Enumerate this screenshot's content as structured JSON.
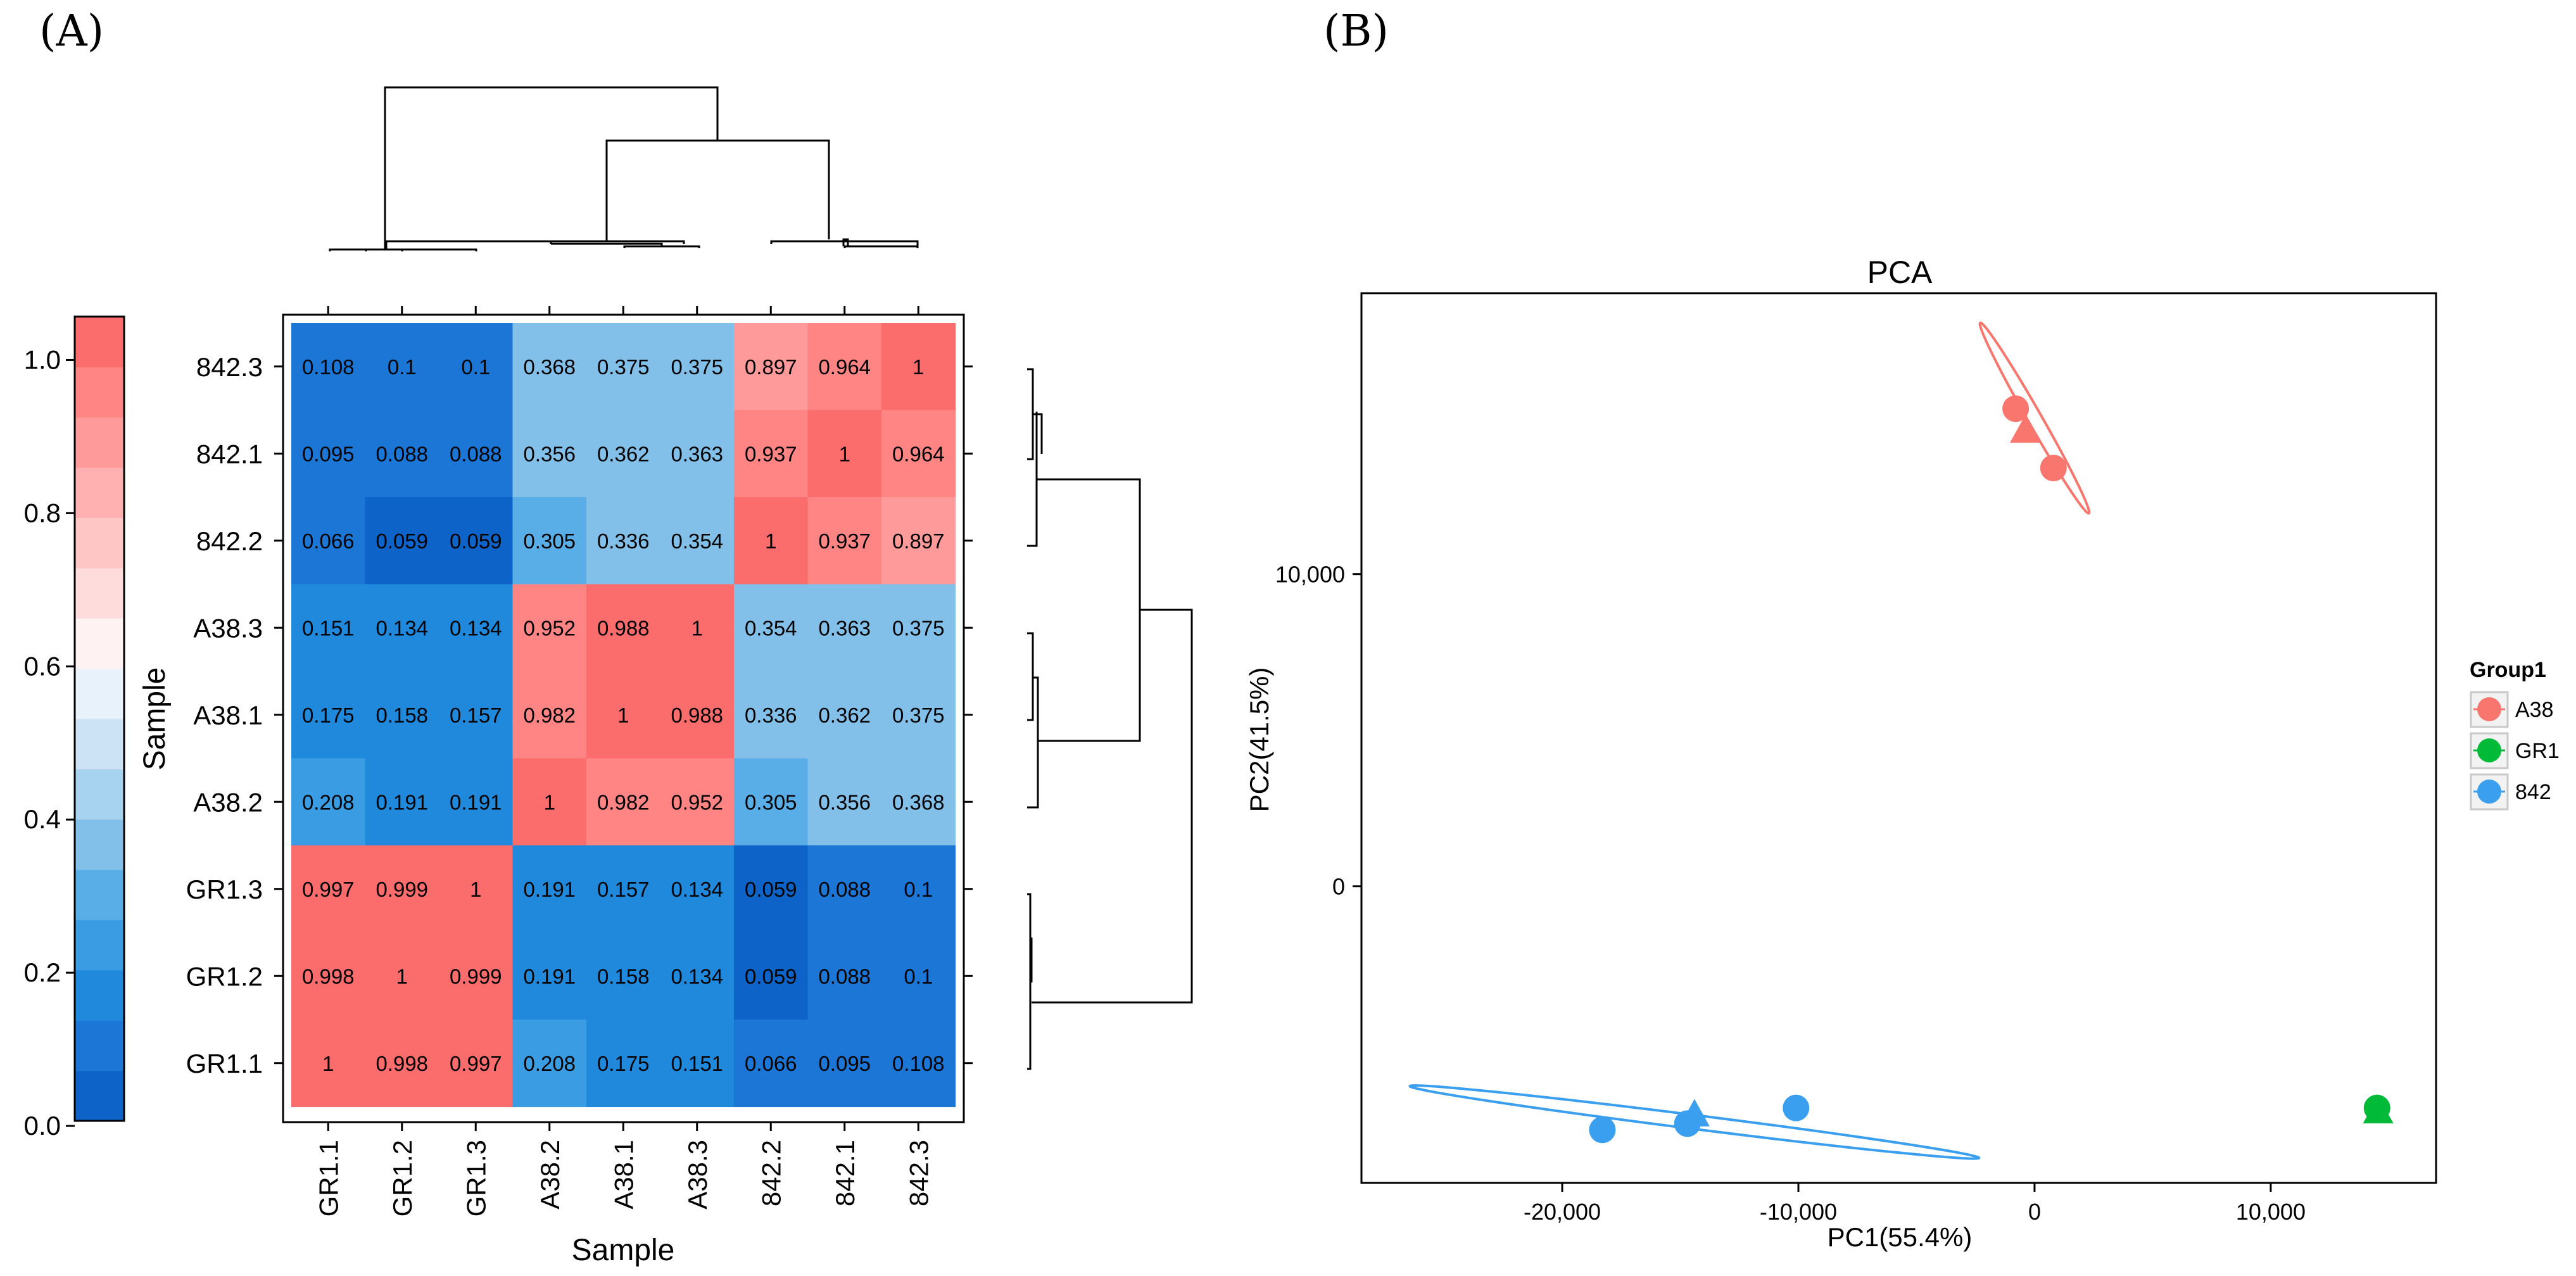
{
  "panels": {
    "a_label": "(A)",
    "b_label": "(B)"
  },
  "chart_data": [
    {
      "type": "heatmap",
      "title": "",
      "xlabel": "Sample",
      "ylabel": "Sample",
      "columns": [
        "GR1.1",
        "GR1.2",
        "GR1.3",
        "A38.2",
        "A38.1",
        "A38.3",
        "842.2",
        "842.1",
        "842.3"
      ],
      "rows": [
        "842.3",
        "842.1",
        "842.2",
        "A38.3",
        "A38.1",
        "A38.2",
        "GR1.3",
        "GR1.2",
        "GR1.1"
      ],
      "values": [
        [
          "0.108",
          "0.1",
          "0.1",
          "0.368",
          "0.375",
          "0.375",
          "0.897",
          "0.964",
          "1"
        ],
        [
          "0.095",
          "0.088",
          "0.088",
          "0.356",
          "0.362",
          "0.363",
          "0.937",
          "1",
          "0.964"
        ],
        [
          "0.066",
          "0.059",
          "0.059",
          "0.305",
          "0.336",
          "0.354",
          "1",
          "0.937",
          "0.897"
        ],
        [
          "0.151",
          "0.134",
          "0.134",
          "0.952",
          "0.988",
          "1",
          "0.354",
          "0.363",
          "0.375"
        ],
        [
          "0.175",
          "0.158",
          "0.157",
          "0.982",
          "1",
          "0.988",
          "0.336",
          "0.362",
          "0.375"
        ],
        [
          "0.208",
          "0.191",
          "0.191",
          "1",
          "0.982",
          "0.952",
          "0.305",
          "0.356",
          "0.368"
        ],
        [
          "0.997",
          "0.999",
          "1",
          "0.191",
          "0.157",
          "0.134",
          "0.059",
          "0.088",
          "0.1"
        ],
        [
          "0.998",
          "1",
          "0.999",
          "0.191",
          "0.158",
          "0.134",
          "0.059",
          "0.088",
          "0.1"
        ],
        [
          "1",
          "0.998",
          "0.997",
          "0.208",
          "0.175",
          "0.151",
          "0.066",
          "0.095",
          "0.108"
        ]
      ],
      "colorbar": {
        "range": [
          0,
          1.05
        ],
        "ticks": [
          "0.0",
          "0.2",
          "0.4",
          "0.6",
          "0.8",
          "1.0"
        ],
        "tick_values": [
          0,
          0.2,
          0.4,
          0.6,
          0.8,
          1.0
        ],
        "palette": [
          "#0d63c7",
          "#1c76d6",
          "#2089dc",
          "#3a9de4",
          "#5aaee7",
          "#82c0ea",
          "#a8d3f0",
          "#cce3f5",
          "#e8f2fa",
          "#fff2f2",
          "#ffdcdc",
          "#ffc6c6",
          "#ffb0b0",
          "#ff9a9a",
          "#ff8484",
          "#fb6c6c"
        ]
      },
      "dendrogram_groups": [
        [
          "GR1.1",
          "GR1.2",
          "GR1.3"
        ],
        [
          "A38.2",
          "A38.1",
          "A38.3"
        ],
        [
          "842.2",
          "842.1",
          "842.3"
        ]
      ]
    },
    {
      "type": "scatter",
      "title": "PCA",
      "xlabel": "PC1(55.4%)",
      "ylabel": "PC2(41.5%)",
      "xlim": [
        -28500,
        17000
      ],
      "ylim": [
        -9500,
        19000
      ],
      "x_ticks": [
        -20000,
        -10000,
        0,
        10000
      ],
      "x_tick_labels": [
        "-20,000",
        "-10,000",
        "0",
        "10,000"
      ],
      "y_ticks": [
        0,
        10000
      ],
      "y_tick_labels": [
        "0",
        "10,000"
      ],
      "legend": {
        "title": "Group1",
        "position": "right"
      },
      "series": [
        {
          "name": "A38",
          "color": "#f8766d",
          "points": [
            {
              "x": -800,
              "y": 15300,
              "shape": "circle"
            },
            {
              "x": -400,
              "y": 14600,
              "shape": "triangle"
            },
            {
              "x": 800,
              "y": 13400,
              "shape": "circle"
            }
          ],
          "ellipse": {
            "cx": 0,
            "cy": 15000,
            "half_x": 2300,
            "half_y": 3050
          }
        },
        {
          "name": "GR1",
          "color": "#00ba38",
          "points": [
            {
              "x": 14500,
              "y": -7100,
              "shape": "circle"
            },
            {
              "x": 14550,
              "y": -7200,
              "shape": "triangle"
            }
          ]
        },
        {
          "name": "842",
          "color": "#3b9ff0",
          "points": [
            {
              "x": -18300,
              "y": -7800,
              "shape": "circle"
            },
            {
              "x": -14400,
              "y": -7300,
              "shape": "triangle"
            },
            {
              "x": -14700,
              "y": -7600,
              "shape": "circle"
            },
            {
              "x": -10100,
              "y": -7100,
              "shape": "circle"
            }
          ],
          "ellipse": {
            "cx": -14400,
            "cy": -7550,
            "half_x": 12050,
            "half_y": 1150
          }
        }
      ]
    }
  ]
}
